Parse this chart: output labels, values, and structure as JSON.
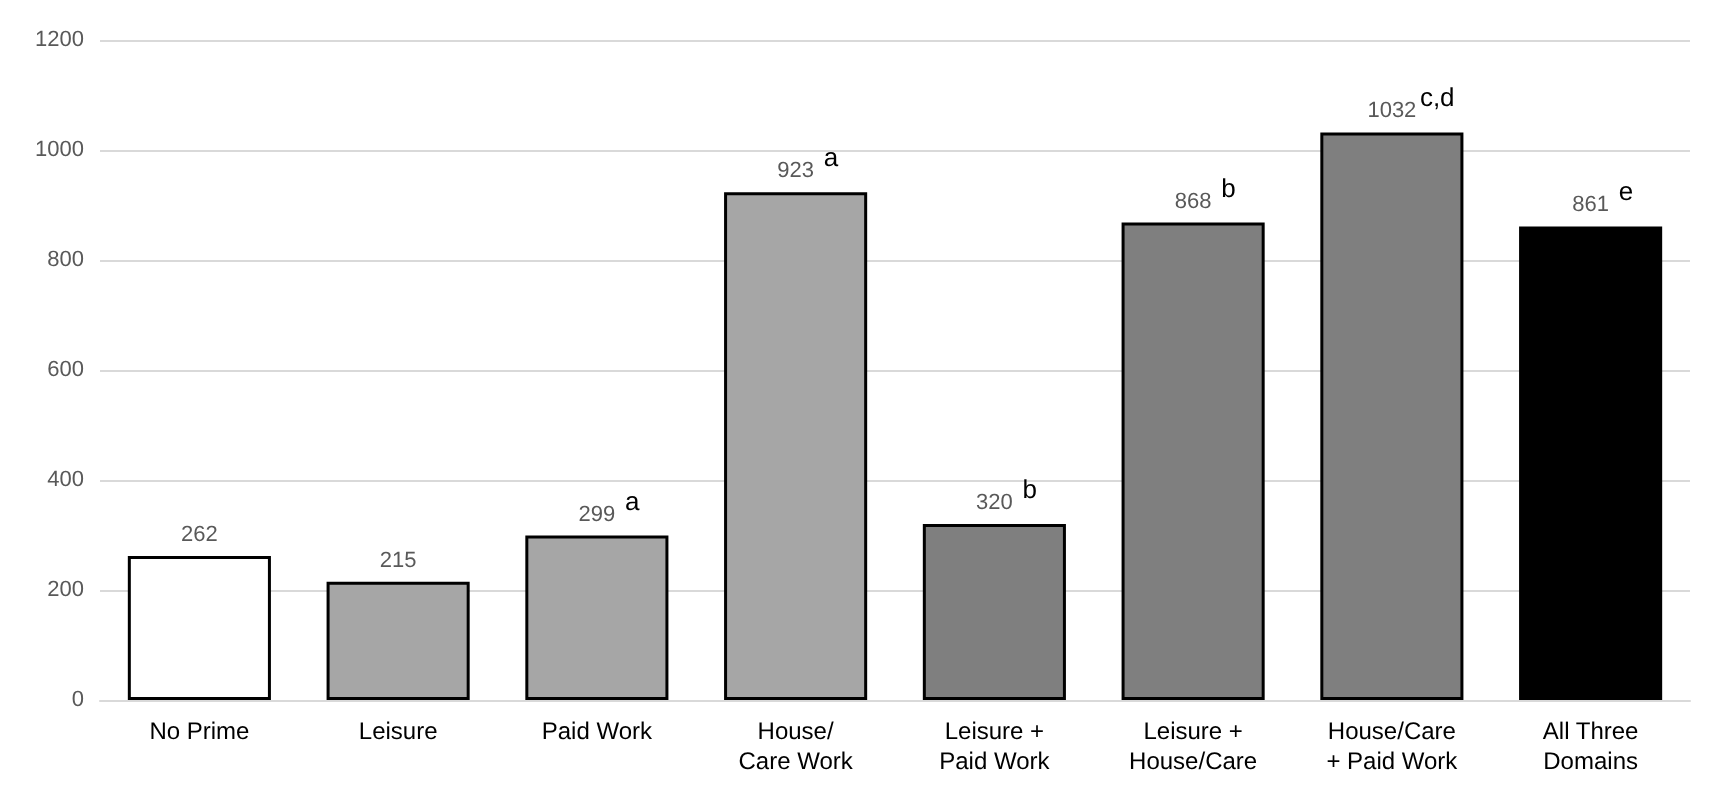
{
  "chart_data": {
    "type": "bar",
    "categories": [
      "No Prime",
      "Leisure",
      "Paid Work",
      "House/\nCare Work",
      "Leisure +\nPaid Work",
      "Leisure +\nHouse/Care",
      "House/Care\n+ Paid Work",
      "All Three\nDomains"
    ],
    "values": [
      262,
      215,
      299,
      923,
      320,
      868,
      1032,
      861
    ],
    "colors": [
      "#ffffff",
      "#a6a6a6",
      "#a6a6a6",
      "#a6a6a6",
      "#7f7f7f",
      "#7f7f7f",
      "#7f7f7f",
      "#000000"
    ],
    "data_labels": true,
    "annotations": [
      {
        "text": "a",
        "x": "Paid Work",
        "y": 299
      },
      {
        "text": "a",
        "x": "House/\nCare Work",
        "y": 923
      },
      {
        "text": "b",
        "x": "Leisure +\nPaid Work",
        "y": 320
      },
      {
        "text": "b",
        "x": "Leisure +\nHouse/Care",
        "y": 868
      },
      {
        "text": "c,d",
        "x": "House/Care\n+ Paid Work",
        "y": 1032
      },
      {
        "text": "e",
        "x": "All Three\nDomains",
        "y": 861
      }
    ],
    "ylim": [
      0,
      1200
    ],
    "yticks": [
      0,
      200,
      400,
      600,
      800,
      1000,
      1200
    ],
    "grid": "y"
  }
}
